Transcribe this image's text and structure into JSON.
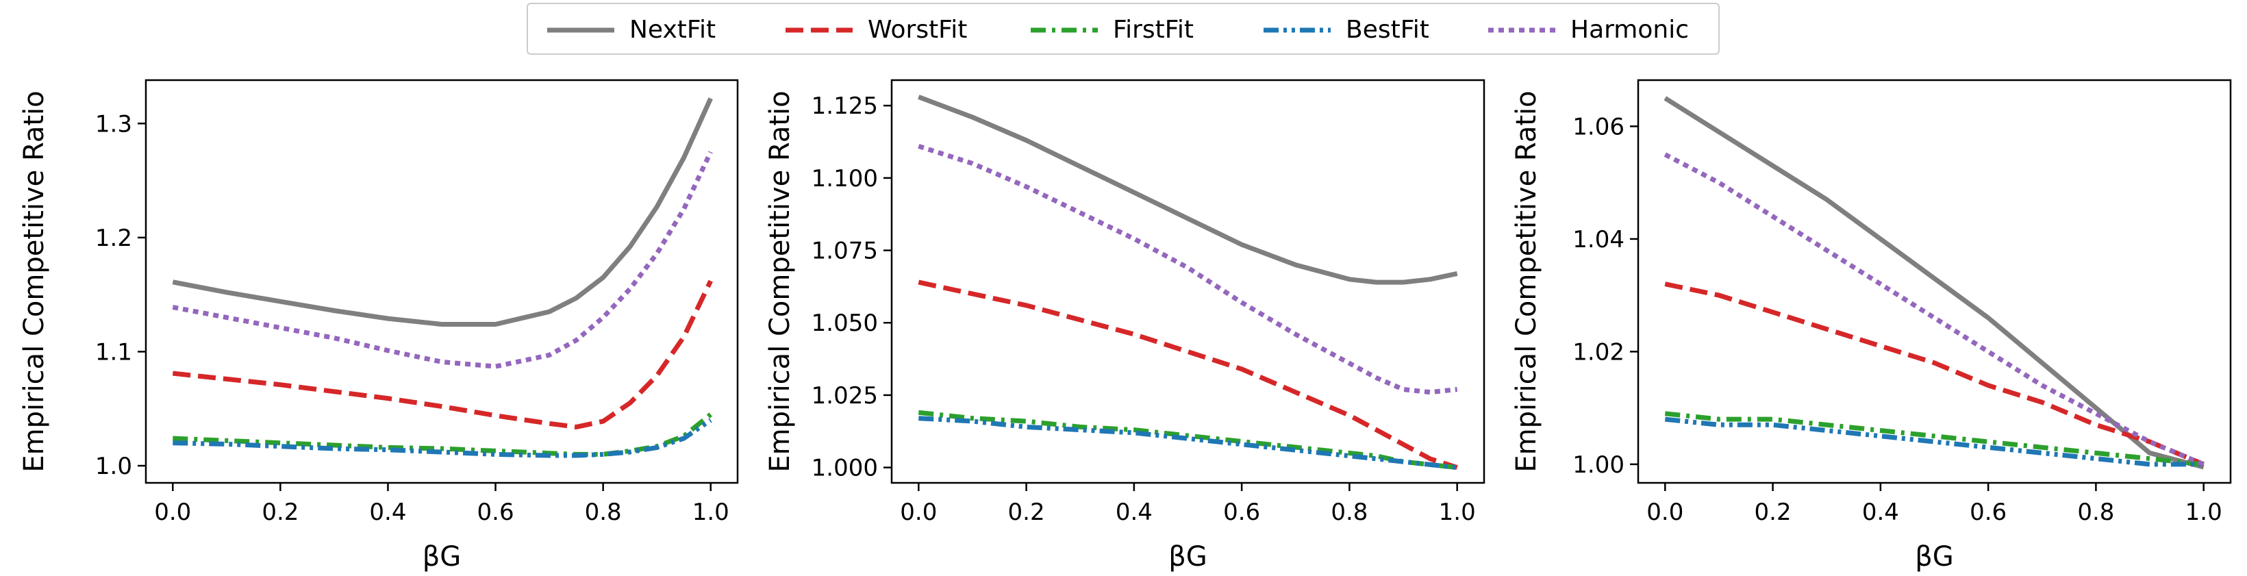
{
  "legend": {
    "placement": "top-center",
    "items": [
      {
        "name": "NextFit",
        "color": "#7f7f7f",
        "dash": "solid"
      },
      {
        "name": "WorstFit",
        "color": "#d62728",
        "dash": "dashed"
      },
      {
        "name": "FirstFit",
        "color": "#2ca02c",
        "dash": "dashdot"
      },
      {
        "name": "BestFit",
        "color": "#1f77b4",
        "dash": "dashdotdot"
      },
      {
        "name": "Harmonic",
        "color": "#9467bd",
        "dash": "dotted"
      }
    ]
  },
  "chart_data": [
    {
      "type": "line",
      "xlabel": "βG",
      "ylabel": "Empirical Competitive Ratio",
      "xlim": [
        -0.05,
        1.05
      ],
      "ylim": [
        0.985,
        1.338
      ],
      "xticks": [
        "0.0",
        "0.2",
        "0.4",
        "0.6",
        "0.8",
        "1.0"
      ],
      "yticks": [
        "1.0",
        "1.1",
        "1.2",
        "1.3"
      ],
      "grid": false,
      "x": [
        0.0,
        0.1,
        0.2,
        0.3,
        0.4,
        0.5,
        0.6,
        0.7,
        0.75,
        0.8,
        0.85,
        0.9,
        0.95,
        1.0
      ],
      "series": [
        {
          "name": "NextFit",
          "values": [
            1.161,
            1.152,
            1.144,
            1.136,
            1.129,
            1.124,
            1.124,
            1.135,
            1.147,
            1.165,
            1.192,
            1.227,
            1.27,
            1.322
          ]
        },
        {
          "name": "WorstFit",
          "values": [
            1.081,
            1.076,
            1.071,
            1.065,
            1.059,
            1.052,
            1.044,
            1.037,
            1.034,
            1.039,
            1.055,
            1.079,
            1.113,
            1.162
          ]
        },
        {
          "name": "FirstFit",
          "values": [
            1.024,
            1.022,
            1.02,
            1.018,
            1.016,
            1.015,
            1.013,
            1.011,
            1.01,
            1.01,
            1.013,
            1.017,
            1.026,
            1.045
          ]
        },
        {
          "name": "BestFit",
          "values": [
            1.02,
            1.019,
            1.017,
            1.015,
            1.014,
            1.012,
            1.01,
            1.009,
            1.009,
            1.01,
            1.012,
            1.016,
            1.024,
            1.04
          ]
        },
        {
          "name": "Harmonic",
          "values": [
            1.139,
            1.13,
            1.121,
            1.112,
            1.101,
            1.091,
            1.087,
            1.097,
            1.11,
            1.13,
            1.155,
            1.186,
            1.225,
            1.275
          ]
        }
      ]
    },
    {
      "type": "line",
      "xlabel": "βG",
      "ylabel": "Empirical Competitive Ratio",
      "xlim": [
        -0.05,
        1.05
      ],
      "ylim": [
        0.9947,
        1.1338
      ],
      "xticks": [
        "0.0",
        "0.2",
        "0.4",
        "0.6",
        "0.8",
        "1.0"
      ],
      "yticks": [
        "1.000",
        "1.025",
        "1.050",
        "1.075",
        "1.100",
        "1.125"
      ],
      "grid": false,
      "x": [
        0.0,
        0.1,
        0.2,
        0.3,
        0.4,
        0.5,
        0.6,
        0.7,
        0.8,
        0.85,
        0.9,
        0.95,
        1.0
      ],
      "series": [
        {
          "name": "NextFit",
          "values": [
            1.128,
            1.121,
            1.113,
            1.104,
            1.095,
            1.086,
            1.077,
            1.07,
            1.065,
            1.064,
            1.064,
            1.065,
            1.067
          ]
        },
        {
          "name": "WorstFit",
          "values": [
            1.064,
            1.06,
            1.056,
            1.051,
            1.046,
            1.04,
            1.034,
            1.026,
            1.018,
            1.013,
            1.008,
            1.003,
            1.0
          ]
        },
        {
          "name": "FirstFit",
          "values": [
            1.019,
            1.017,
            1.016,
            1.014,
            1.013,
            1.011,
            1.009,
            1.007,
            1.005,
            1.004,
            1.002,
            1.001,
            1.0
          ]
        },
        {
          "name": "BestFit",
          "values": [
            1.017,
            1.016,
            1.014,
            1.013,
            1.012,
            1.01,
            1.008,
            1.006,
            1.004,
            1.003,
            1.002,
            1.001,
            1.0
          ]
        },
        {
          "name": "Harmonic",
          "values": [
            1.111,
            1.105,
            1.097,
            1.088,
            1.079,
            1.069,
            1.057,
            1.046,
            1.036,
            1.031,
            1.027,
            1.026,
            1.027
          ]
        }
      ]
    },
    {
      "type": "line",
      "xlabel": "βG",
      "ylabel": "Empirical Competitive Ratio",
      "xlim": [
        -0.05,
        1.05
      ],
      "ylim": [
        0.9967,
        1.0682
      ],
      "xticks": [
        "0.0",
        "0.2",
        "0.4",
        "0.6",
        "0.8",
        "1.0"
      ],
      "yticks": [
        "1.00",
        "1.02",
        "1.04",
        "1.06"
      ],
      "grid": false,
      "x": [
        0.0,
        0.1,
        0.2,
        0.3,
        0.4,
        0.5,
        0.6,
        0.7,
        0.8,
        0.9,
        1.0
      ],
      "series": [
        {
          "name": "NextFit",
          "values": [
            1.065,
            1.059,
            1.053,
            1.047,
            1.04,
            1.033,
            1.026,
            1.018,
            1.01,
            1.002,
            0.9995
          ]
        },
        {
          "name": "WorstFit",
          "values": [
            1.032,
            1.03,
            1.027,
            1.024,
            1.021,
            1.018,
            1.014,
            1.011,
            1.007,
            1.004,
            1.0
          ]
        },
        {
          "name": "FirstFit",
          "values": [
            1.009,
            1.008,
            1.008,
            1.007,
            1.006,
            1.005,
            1.004,
            1.003,
            1.002,
            1.001,
            1.0
          ]
        },
        {
          "name": "BestFit",
          "values": [
            1.008,
            1.007,
            1.007,
            1.006,
            1.005,
            1.004,
            1.003,
            1.002,
            1.001,
            1.0,
            1.0
          ]
        },
        {
          "name": "Harmonic",
          "values": [
            1.055,
            1.05,
            1.044,
            1.038,
            1.032,
            1.026,
            1.02,
            1.014,
            1.009,
            1.004,
            1.0
          ]
        }
      ]
    }
  ]
}
